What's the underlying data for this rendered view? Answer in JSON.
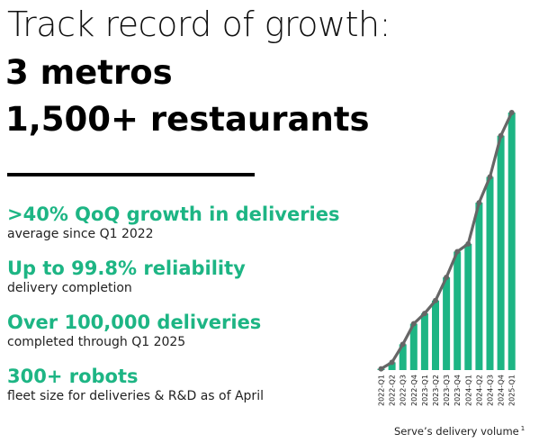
{
  "title": {
    "line1": "Track record of growth:",
    "line2": "3 metros",
    "line3": "1,500+ restaurants"
  },
  "stats": [
    {
      "headline": ">40% QoQ growth in deliveries",
      "sub": "average since Q1 2022"
    },
    {
      "headline": "Up to 99.8% reliability",
      "sub": "delivery completion"
    },
    {
      "headline": "Over 100,000 deliveries",
      "sub": "completed through Q1 2025"
    },
    {
      "headline": "300+ robots",
      "sub": "fleet size for deliveries & R&D as of April"
    }
  ],
  "colors": {
    "accent": "#1db584",
    "trend_line": "#666666",
    "text": "#111111"
  },
  "chart_data": {
    "type": "bar",
    "caption": "Serve’s delivery volume",
    "caption_footnote": "1",
    "categories": [
      "2022-Q1",
      "2022-Q2",
      "2022-Q3",
      "2022-Q4",
      "2023-Q1",
      "2023-Q2",
      "2023-Q3",
      "2023-Q4",
      "2024-Q1",
      "2024-Q2",
      "2024-Q3",
      "2024-Q4",
      "2025-Q1"
    ],
    "values": [
      0.5,
      3,
      10,
      18,
      22,
      27,
      36,
      46,
      49,
      65,
      75,
      91,
      100
    ],
    "ylim": [
      0,
      100
    ],
    "overlay": "trend-line",
    "yaxis_visible": false,
    "grid": false
  }
}
